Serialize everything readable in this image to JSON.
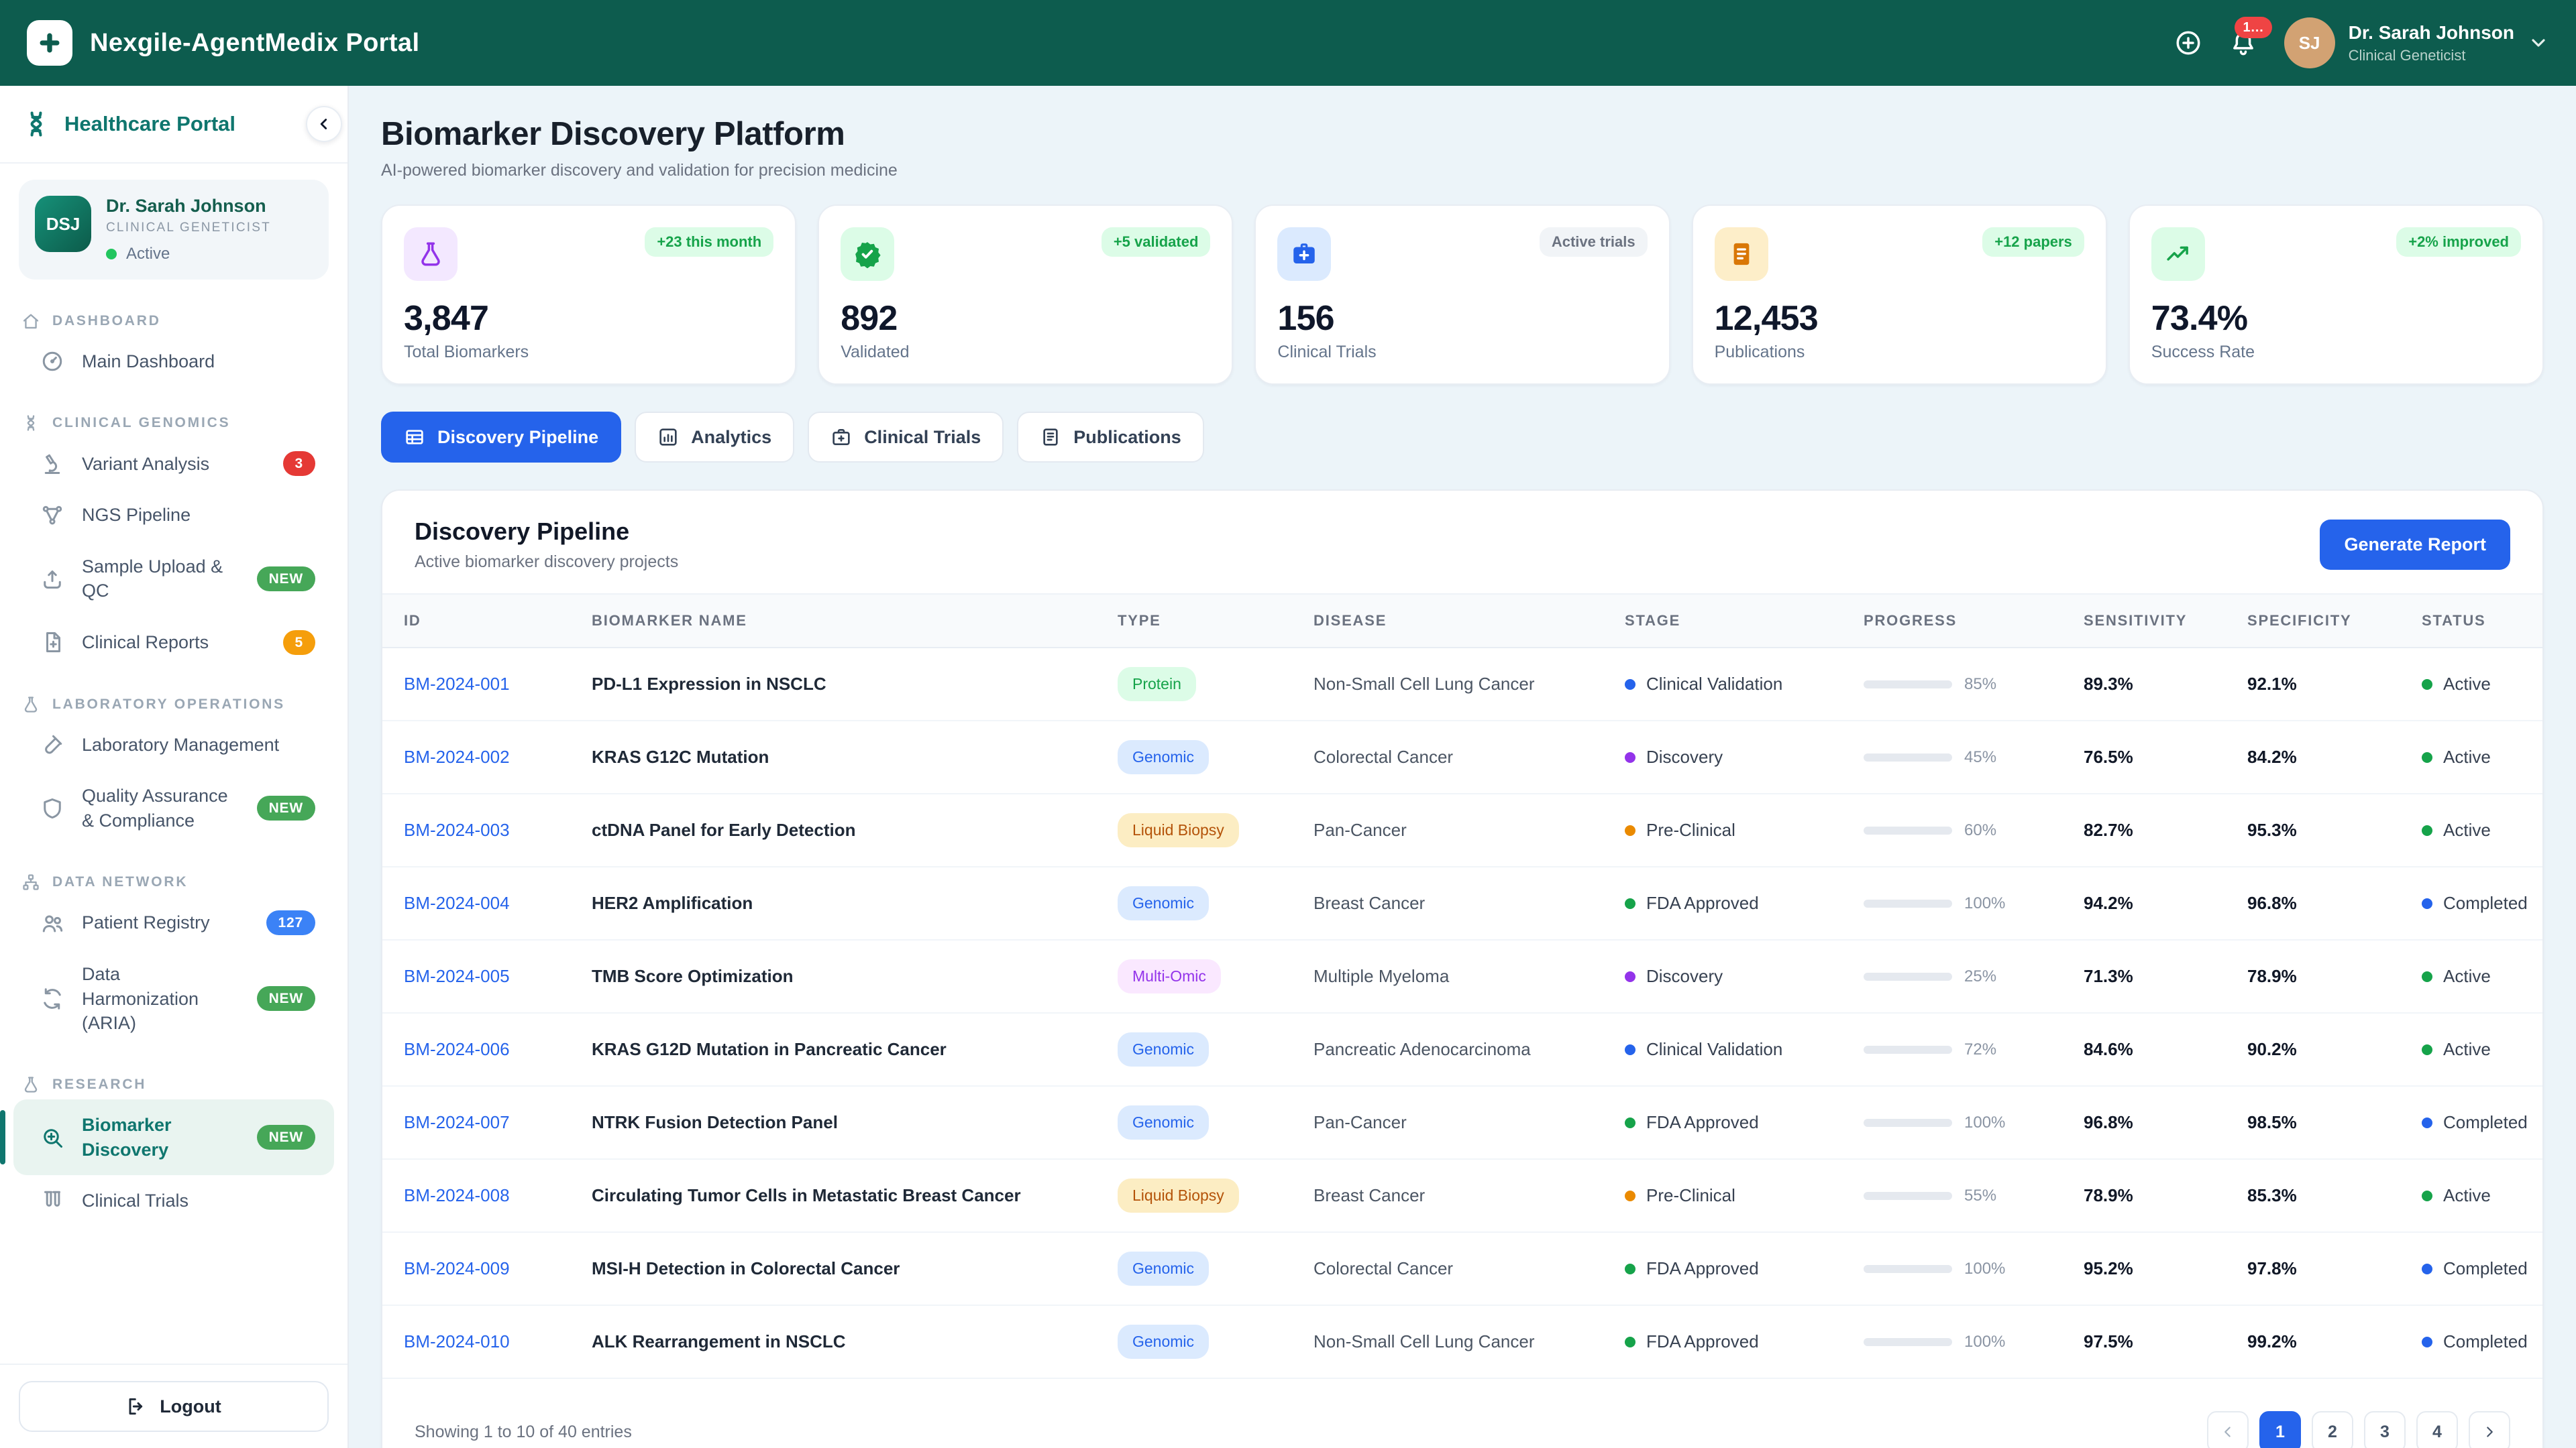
{
  "header": {
    "app_title": "Nexgile-AgentMedix Portal",
    "notification_badge": "1…",
    "user": {
      "initials": "SJ",
      "name": "Dr. Sarah Johnson",
      "role": "Clinical Geneticist"
    }
  },
  "sidebar": {
    "brand": "Healthcare Portal",
    "user": {
      "initials": "DSJ",
      "name": "Dr. Sarah Johnson",
      "role": "CLINICAL GENETICIST",
      "status": "Active"
    },
    "sections": [
      {
        "label": "DASHBOARD",
        "icon": "home-icon",
        "items": [
          {
            "label": "Main Dashboard",
            "icon": "gauge-icon"
          }
        ]
      },
      {
        "label": "CLINICAL GENOMICS",
        "icon": "dna-icon",
        "items": [
          {
            "label": "Variant Analysis",
            "icon": "microscope-icon",
            "badge": {
              "text": "3",
              "color": "#e53935"
            }
          },
          {
            "label": "NGS Pipeline",
            "icon": "pipeline-icon"
          },
          {
            "label": "Sample Upload & QC",
            "icon": "upload-icon",
            "badge": {
              "text": "NEW",
              "color": "#46a758"
            }
          },
          {
            "label": "Clinical Reports",
            "icon": "report-icon",
            "badge": {
              "text": "5",
              "color": "#f59e0b"
            }
          }
        ]
      },
      {
        "label": "LABORATORY OPERATIONS",
        "icon": "flask-icon",
        "items": [
          {
            "label": "Laboratory Management",
            "icon": "test-tube-icon"
          },
          {
            "label": "Quality Assurance & Compliance",
            "icon": "shield-icon",
            "badge": {
              "text": "NEW",
              "color": "#46a758"
            }
          }
        ]
      },
      {
        "label": "DATA NETWORK",
        "icon": "hierarchy-icon",
        "items": [
          {
            "label": "Patient Registry",
            "icon": "users-icon",
            "badge": {
              "text": "127",
              "color": "#3b82f6"
            }
          },
          {
            "label": "Data Harmonization (ARIA)",
            "icon": "sync-icon",
            "badge": {
              "text": "NEW",
              "color": "#46a758"
            }
          }
        ]
      },
      {
        "label": "RESEARCH",
        "icon": "beaker-icon",
        "items": [
          {
            "label": "Biomarker Discovery",
            "icon": "search-plus-icon",
            "badge": {
              "text": "NEW",
              "color": "#46a758"
            },
            "active": true
          },
          {
            "label": "Clinical Trials",
            "icon": "test-tubes-icon"
          }
        ]
      }
    ],
    "logout_label": "Logout"
  },
  "page": {
    "title": "Biomarker Discovery Platform",
    "subtitle": "AI-powered biomarker discovery and validation for precision medicine"
  },
  "stats": [
    {
      "icon": "flask-icon",
      "icon_color": "#9333ea",
      "icon_bg": "#f3e8ff",
      "badge": "+23 this month",
      "badge_bg": "#dcfce7",
      "badge_text": "#16a34a",
      "value": "3,847",
      "label": "Total Biomarkers"
    },
    {
      "icon": "verified-icon",
      "icon_color": "#16a34a",
      "icon_bg": "#dcfce7",
      "badge": "+5 validated",
      "badge_bg": "#dcfce7",
      "badge_text": "#16a34a",
      "value": "892",
      "label": "Validated"
    },
    {
      "icon": "med-case-icon",
      "icon_color": "#2563eb",
      "icon_bg": "#dbeafe",
      "badge": "Active trials",
      "badge_bg": "#f1f4f7",
      "badge_text": "#6b7280",
      "value": "156",
      "label": "Clinical Trials"
    },
    {
      "icon": "document-icon",
      "icon_color": "#d97706",
      "icon_bg": "#fdeec9",
      "badge": "+12 papers",
      "badge_bg": "#dcfce7",
      "badge_text": "#16a34a",
      "value": "12,453",
      "label": "Publications"
    },
    {
      "icon": "trend-up-icon",
      "icon_color": "#16a34a",
      "icon_bg": "#dcfce7",
      "badge": "+2% improved",
      "badge_bg": "#dcfce7",
      "badge_text": "#16a34a",
      "value": "73.4%",
      "label": "Success Rate"
    }
  ],
  "tabs": [
    {
      "label": "Discovery Pipeline",
      "icon": "table-icon",
      "active": true
    },
    {
      "label": "Analytics",
      "icon": "chart-icon",
      "active": false
    },
    {
      "label": "Clinical Trials",
      "icon": "briefcase-icon",
      "active": false
    },
    {
      "label": "Publications",
      "icon": "book-icon",
      "active": false
    }
  ],
  "panel": {
    "title": "Discovery Pipeline",
    "subtitle": "Active biomarker discovery projects",
    "button_label": "Generate Report"
  },
  "table": {
    "columns": [
      "ID",
      "BIOMARKER NAME",
      "TYPE",
      "DISEASE",
      "STAGE",
      "PROGRESS",
      "SENSITIVITY",
      "SPECIFICITY",
      "STATUS"
    ],
    "rows": [
      {
        "id": "BM-2024-001",
        "name": "PD-L1 Expression in NSCLC",
        "type": "Protein",
        "disease": "Non-Small Cell Lung Cancer",
        "stage": "Clinical Validation",
        "progress": 85,
        "sensitivity": "89.3%",
        "specificity": "92.1%",
        "status": "Active"
      },
      {
        "id": "BM-2024-002",
        "name": "KRAS G12C Mutation",
        "type": "Genomic",
        "disease": "Colorectal Cancer",
        "stage": "Discovery",
        "progress": 45,
        "sensitivity": "76.5%",
        "specificity": "84.2%",
        "status": "Active"
      },
      {
        "id": "BM-2024-003",
        "name": "ctDNA Panel for Early Detection",
        "type": "Liquid Biopsy",
        "disease": "Pan-Cancer",
        "stage": "Pre-Clinical",
        "progress": 60,
        "sensitivity": "82.7%",
        "specificity": "95.3%",
        "status": "Active"
      },
      {
        "id": "BM-2024-004",
        "name": "HER2 Amplification",
        "type": "Genomic",
        "disease": "Breast Cancer",
        "stage": "FDA Approved",
        "progress": 100,
        "sensitivity": "94.2%",
        "specificity": "96.8%",
        "status": "Completed"
      },
      {
        "id": "BM-2024-005",
        "name": "TMB Score Optimization",
        "type": "Multi-Omic",
        "disease": "Multiple Myeloma",
        "stage": "Discovery",
        "progress": 25,
        "sensitivity": "71.3%",
        "specificity": "78.9%",
        "status": "Active"
      },
      {
        "id": "BM-2024-006",
        "name": "KRAS G12D Mutation in Pancreatic Cancer",
        "type": "Genomic",
        "disease": "Pancreatic Adenocarcinoma",
        "stage": "Clinical Validation",
        "progress": 72,
        "sensitivity": "84.6%",
        "specificity": "90.2%",
        "status": "Active"
      },
      {
        "id": "BM-2024-007",
        "name": "NTRK Fusion Detection Panel",
        "type": "Genomic",
        "disease": "Pan-Cancer",
        "stage": "FDA Approved",
        "progress": 100,
        "sensitivity": "96.8%",
        "specificity": "98.5%",
        "status": "Completed"
      },
      {
        "id": "BM-2024-008",
        "name": "Circulating Tumor Cells in Metastatic Breast Cancer",
        "type": "Liquid Biopsy",
        "disease": "Breast Cancer",
        "stage": "Pre-Clinical",
        "progress": 55,
        "sensitivity": "78.9%",
        "specificity": "85.3%",
        "status": "Active"
      },
      {
        "id": "BM-2024-009",
        "name": "MSI-H Detection in Colorectal Cancer",
        "type": "Genomic",
        "disease": "Colorectal Cancer",
        "stage": "FDA Approved",
        "progress": 100,
        "sensitivity": "95.2%",
        "specificity": "97.8%",
        "status": "Completed"
      },
      {
        "id": "BM-2024-010",
        "name": "ALK Rearrangement in NSCLC",
        "type": "Genomic",
        "disease": "Non-Small Cell Lung Cancer",
        "stage": "FDA Approved",
        "progress": 100,
        "sensitivity": "97.5%",
        "specificity": "99.2%",
        "status": "Completed"
      }
    ]
  },
  "pagination": {
    "summary": "Showing 1 to 10 of 40 entries",
    "pages": [
      "1",
      "2",
      "3",
      "4"
    ],
    "active_page": "1"
  },
  "colors": {
    "brand_teal": "#0d5c4e",
    "accent_blue": "#2563eb",
    "type_pills": {
      "Protein": {
        "bg": "#dcfce7",
        "text": "#16a34a"
      },
      "Genomic": {
        "bg": "#dbeafe",
        "text": "#2563eb"
      },
      "Liquid Biopsy": {
        "bg": "#fcedc3",
        "text": "#b45309"
      },
      "Multi-Omic": {
        "bg": "#fae8ff",
        "text": "#9333ea"
      }
    },
    "stage_dots": {
      "Clinical Validation": "#2563eb",
      "Discovery": "#9333ea",
      "Pre-Clinical": "#ea8a00",
      "FDA Approved": "#16a34a"
    },
    "status_dots": {
      "Active": "#16a34a",
      "Completed": "#2563eb"
    },
    "progress_fill": {
      "low": "#d97706",
      "mid": "#a855f7",
      "high": "#2563eb"
    }
  }
}
